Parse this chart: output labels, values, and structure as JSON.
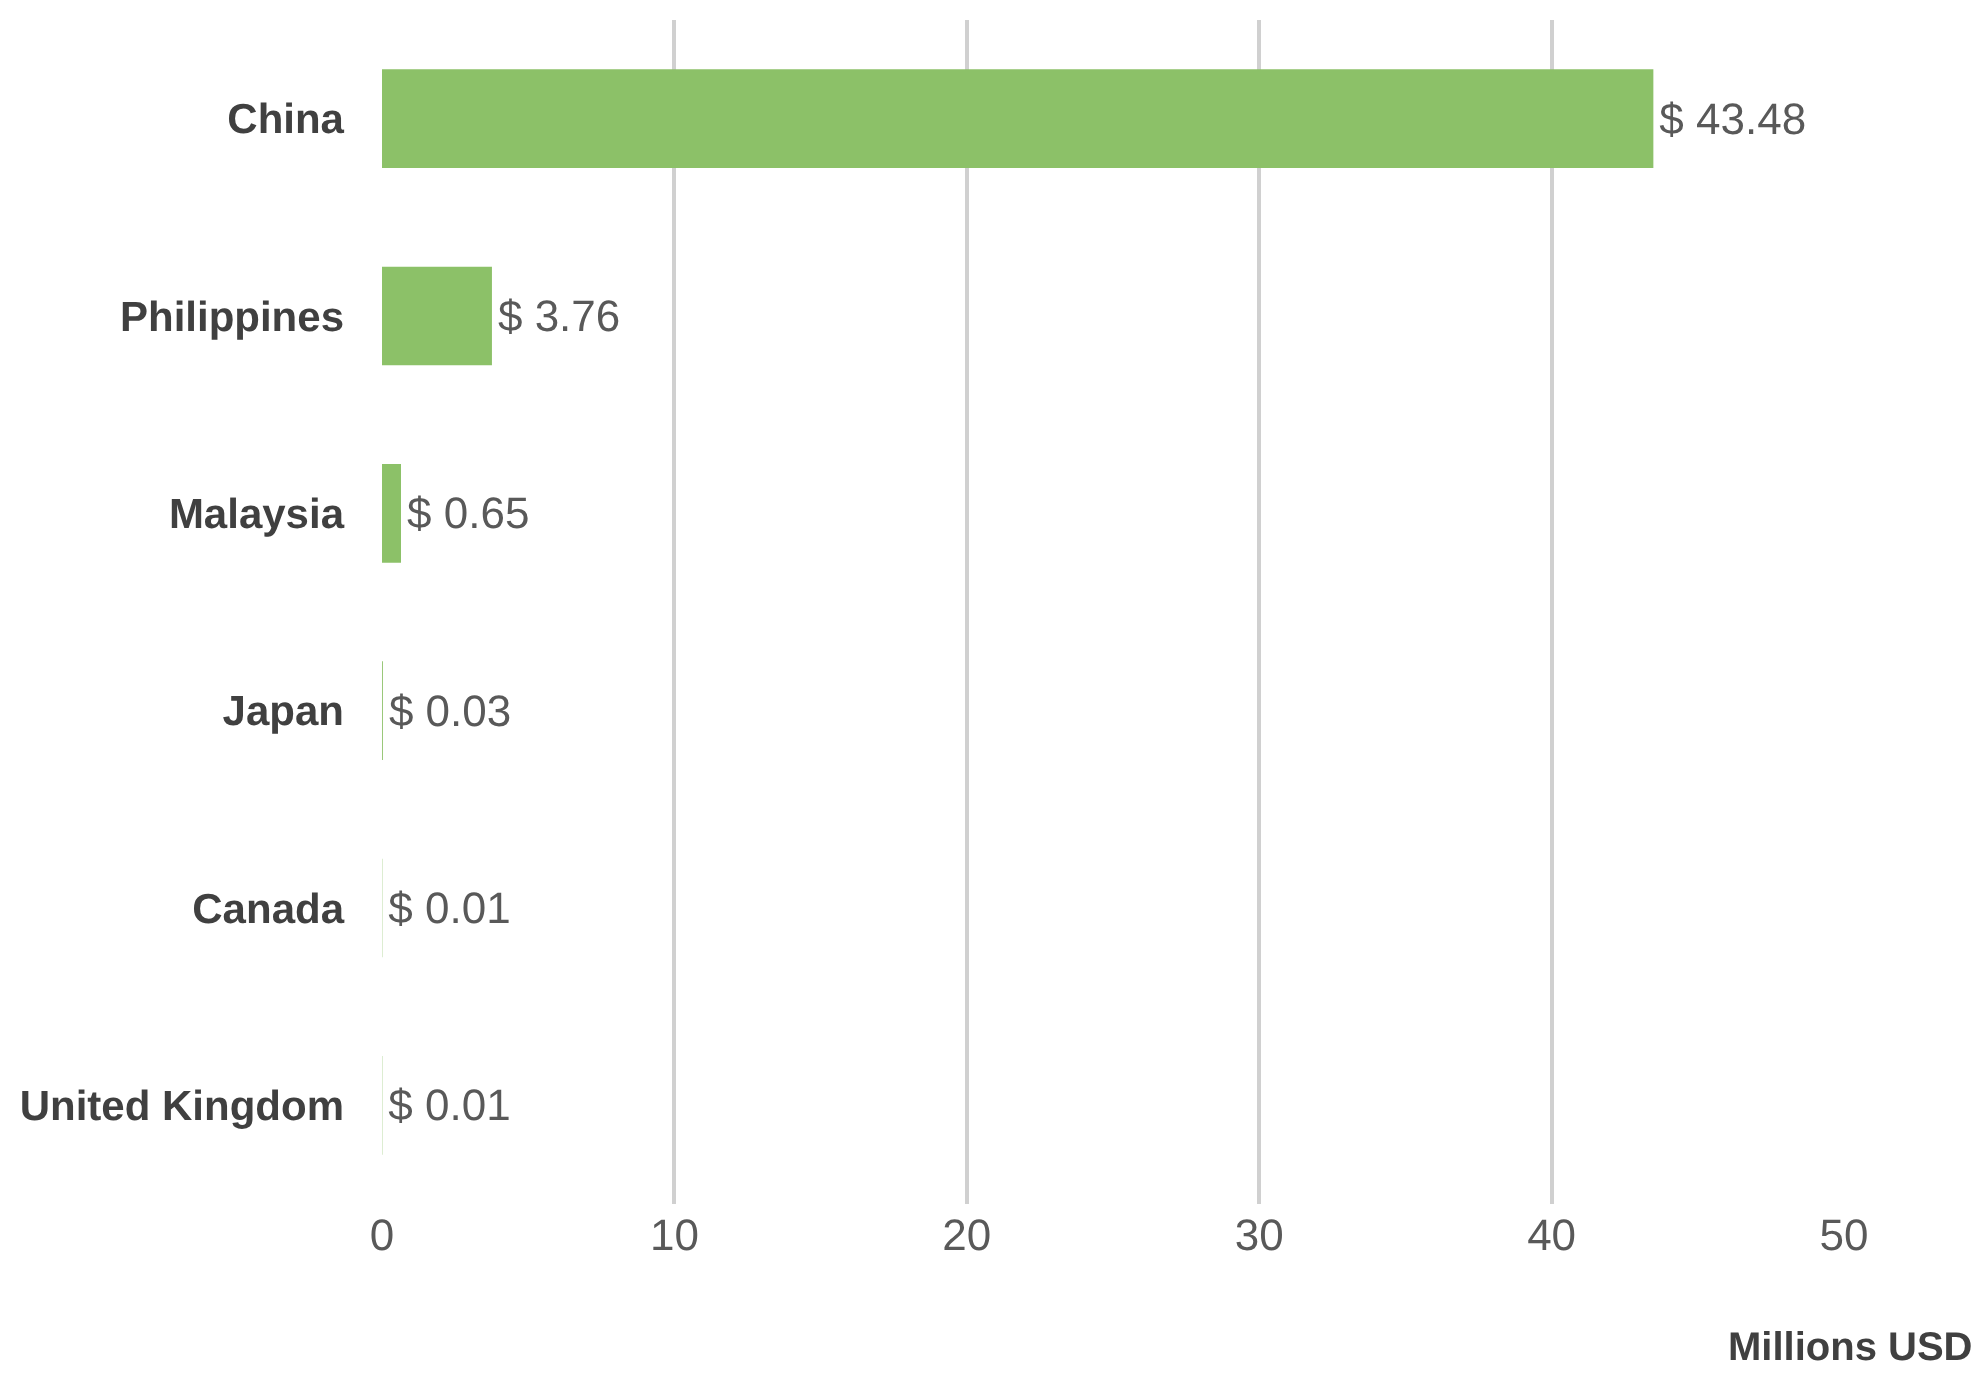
{
  "chart_data": {
    "type": "bar",
    "orientation": "horizontal",
    "categories": [
      "China",
      "Philippines",
      "Malaysia",
      "Japan",
      "Canada",
      "United Kingdom"
    ],
    "values": [
      43.48,
      3.76,
      0.65,
      0.03,
      0.01,
      0.01
    ],
    "value_labels": [
      "$ 43.48",
      "$ 3.76",
      "$ 0.65",
      "$ 0.03",
      "$ 0.01",
      "$ 0.01"
    ],
    "color": "#8cc168",
    "xlabel": "Millions USD",
    "xlim": [
      0,
      50
    ],
    "xticks": [
      0,
      10,
      20,
      30,
      40,
      50
    ],
    "grid": "x",
    "legend": false
  }
}
